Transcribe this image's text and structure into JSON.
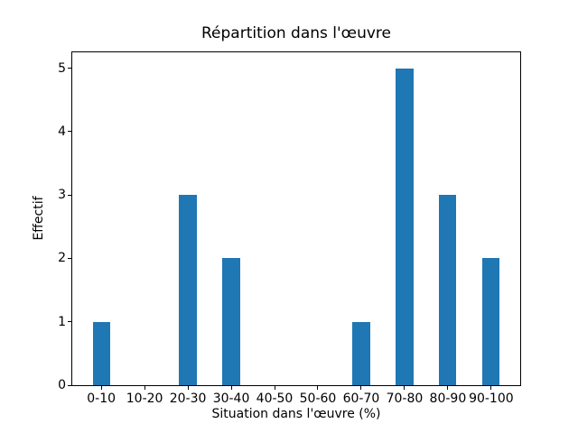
{
  "chart_data": {
    "type": "bar",
    "title": "Répartition dans l'œuvre",
    "xlabel": "Situation dans l'œuvre (%)",
    "ylabel": "Effectif",
    "categories": [
      "0-10",
      "10-20",
      "20-30",
      "30-40",
      "40-50",
      "50-60",
      "60-70",
      "70-80",
      "80-90",
      "90-100"
    ],
    "values": [
      1,
      0,
      3,
      2,
      0,
      0,
      1,
      5,
      3,
      2
    ],
    "yticks": [
      0,
      1,
      2,
      3,
      4,
      5
    ],
    "ylim": [
      0,
      5.25
    ],
    "xlim": [
      -0.67,
      9.67
    ],
    "bar_width": 0.4,
    "bar_color": "#1f77b4",
    "grid": false,
    "legend": false
  },
  "colors": {
    "background": "#ffffff",
    "text": "#000000",
    "spine": "#000000"
  }
}
